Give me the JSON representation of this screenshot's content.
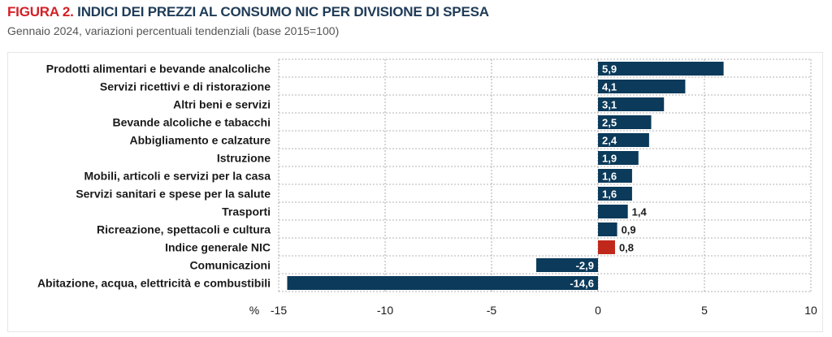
{
  "header": {
    "figure_label": "FIGURA 2.",
    "title": "INDICI DEI PREZZI AL CONSUMO NIC PER DIVISIONE DI SPESA",
    "subtitle": "Gennaio 2024, variazioni percentuali tendenziali (base 2015=100)"
  },
  "colors": {
    "bar": "#0b3a5a",
    "highlight": "#c0281b",
    "label_inside": "#ffffff",
    "label_outside": "#1a1a1a"
  },
  "chart_data": {
    "type": "bar",
    "orientation": "horizontal",
    "title": "INDICI DEI PREZZI AL CONSUMO NIC PER DIVISIONE DI SPESA",
    "subtitle": "Gennaio 2024, variazioni percentuali tendenziali (base 2015=100)",
    "xlabel": "%",
    "xlim": [
      -15,
      10
    ],
    "xticks": [
      -15,
      -10,
      -5,
      0,
      5,
      10
    ],
    "xtick_labels": [
      "-15",
      "-10",
      "-5",
      "0",
      "5",
      "10"
    ],
    "grid": true,
    "categories": [
      "Prodotti alimentari e bevande analcoliche",
      "Servizi ricettivi e di ristorazione",
      "Altri beni e servizi",
      "Bevande alcoliche e tabacchi",
      "Abbigliamento e calzature",
      "Istruzione",
      "Mobili, articoli e servizi per la casa",
      "Servizi sanitari e spese per la salute",
      "Trasporti",
      "Ricreazione, spettacoli e cultura",
      "Indice generale NIC",
      "Comunicazioni",
      "Abitazione, acqua, elettricità e combustibili"
    ],
    "values": [
      5.9,
      4.1,
      3.1,
      2.5,
      2.4,
      1.9,
      1.6,
      1.6,
      1.4,
      0.9,
      0.8,
      -2.9,
      -14.6
    ],
    "value_labels": [
      "5,9",
      "4,1",
      "3,1",
      "2,5",
      "2,4",
      "1,9",
      "1,6",
      "1,6",
      "1,4",
      "0,9",
      "0,8",
      "-2,9",
      "-14,6"
    ],
    "highlight_category": "Indice generale NIC"
  }
}
